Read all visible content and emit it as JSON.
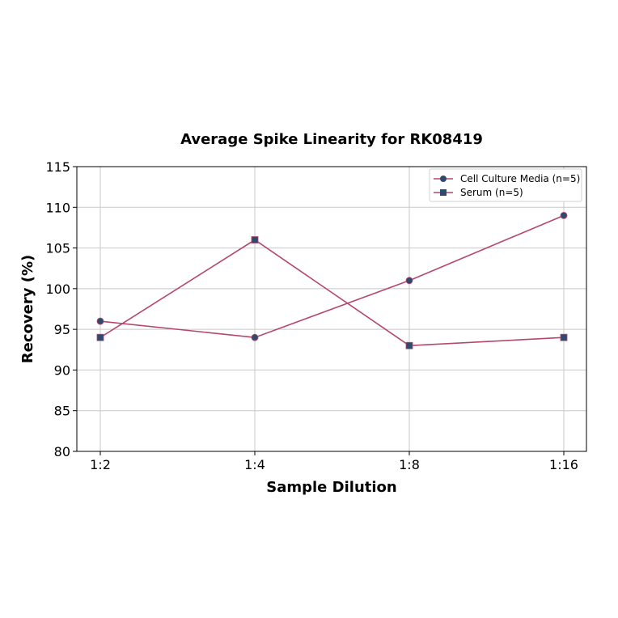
{
  "chart_data": {
    "type": "line",
    "title": "Average Spike Linearity for RK08419",
    "xlabel": "Sample Dilution",
    "ylabel": "Recovery (%)",
    "categories": [
      "1:2",
      "1:4",
      "1:8",
      "1:16"
    ],
    "ylim": [
      80,
      115
    ],
    "yticks": [
      80,
      85,
      90,
      95,
      100,
      105,
      110,
      115
    ],
    "grid": true,
    "legend_position": "upper right",
    "series": [
      {
        "name": "Cell Culture Media (n=5)",
        "marker": "circle",
        "values": [
          96,
          94,
          101,
          109
        ]
      },
      {
        "name": "Serum (n=5)",
        "marker": "square",
        "values": [
          94,
          106,
          93,
          94
        ]
      }
    ]
  },
  "colors": {
    "line": "#b5476b",
    "marker": "#2e4a6e",
    "grid": "#c8c8c8",
    "axis": "#000000"
  }
}
